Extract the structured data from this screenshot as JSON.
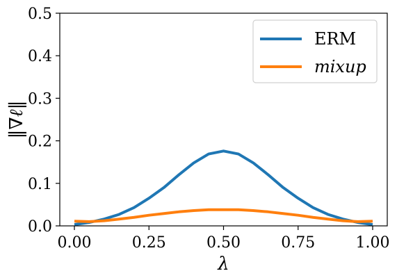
{
  "chart_data": {
    "type": "line",
    "xlabel": "λ",
    "ylabel": "‖∇ℓ‖",
    "xlim": [
      0,
      1
    ],
    "ylim": [
      0,
      0.5
    ],
    "xticks": [
      "0.00",
      "0.25",
      "0.50",
      "0.75",
      "1.00"
    ],
    "yticks": [
      "0.0",
      "0.1",
      "0.2",
      "0.3",
      "0.4",
      "0.5"
    ],
    "legend_position": "top-right",
    "grid": false,
    "x": [
      0.0,
      0.05,
      0.1,
      0.15,
      0.2,
      0.25,
      0.3,
      0.35,
      0.4,
      0.45,
      0.5,
      0.55,
      0.6,
      0.65,
      0.7,
      0.75,
      0.8,
      0.85,
      0.9,
      0.95,
      1.0
    ],
    "series": [
      {
        "name": "ERM",
        "color": "#1f77b4",
        "values": [
          0.003,
          0.008,
          0.016,
          0.027,
          0.043,
          0.065,
          0.09,
          0.12,
          0.148,
          0.169,
          0.176,
          0.169,
          0.148,
          0.12,
          0.09,
          0.065,
          0.043,
          0.027,
          0.016,
          0.008,
          0.003
        ]
      },
      {
        "name": "mixup",
        "color": "#ff7f0e",
        "italic": true,
        "values": [
          0.011,
          0.01,
          0.012,
          0.016,
          0.02,
          0.025,
          0.029,
          0.033,
          0.036,
          0.038,
          0.038,
          0.038,
          0.036,
          0.033,
          0.029,
          0.025,
          0.02,
          0.016,
          0.012,
          0.01,
          0.011
        ]
      }
    ]
  }
}
